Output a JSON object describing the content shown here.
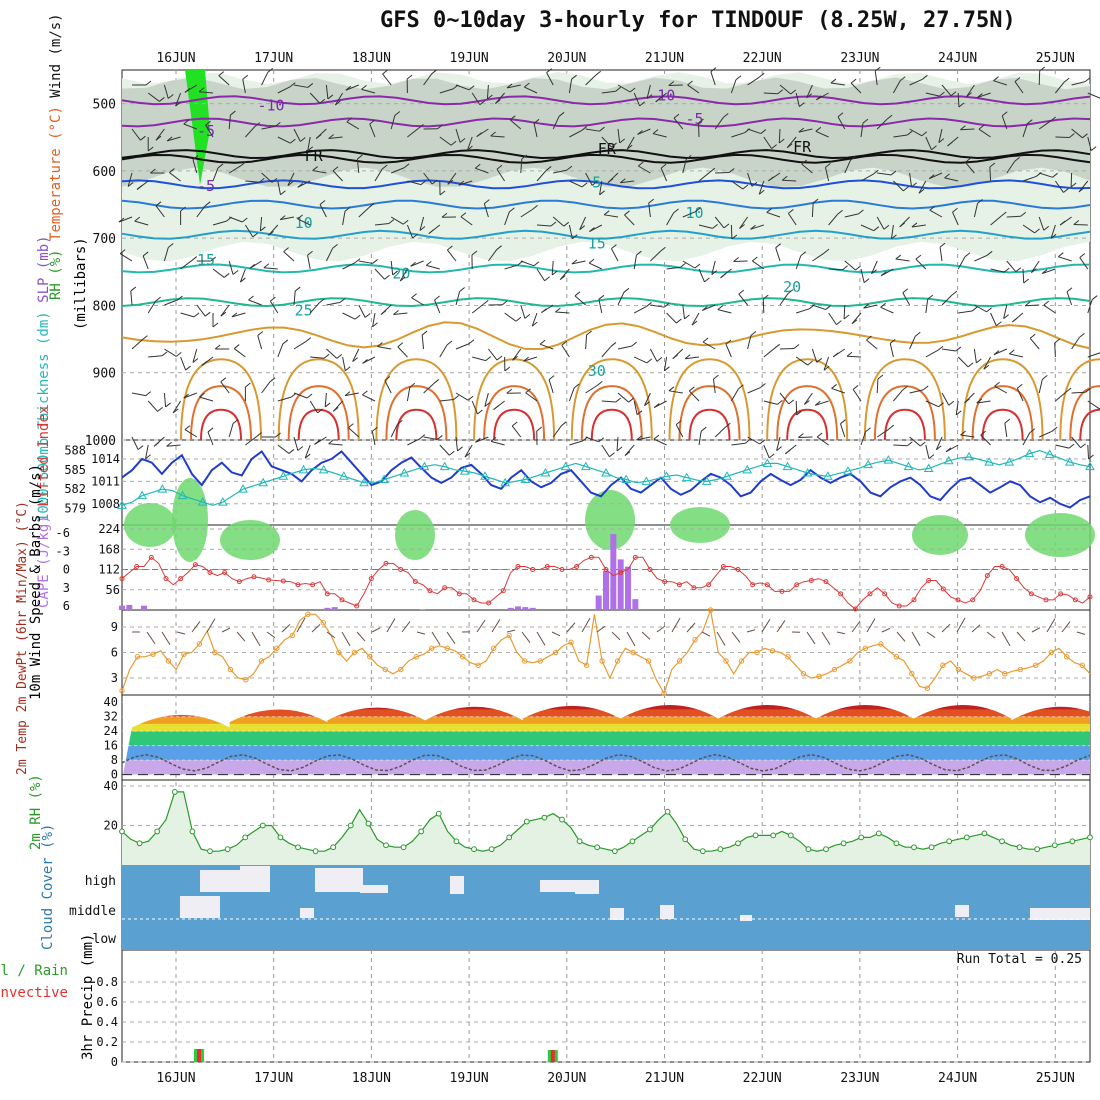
{
  "title": "GFS 0~10day 3-hourly for TINDOUF (8.25W, 27.75N)",
  "run_total": "Run Total = 0.25",
  "colors": {
    "wind_barb": "#333333",
    "slp": "#1f3ccc",
    "thickness": "#22b8b8",
    "lifted": "#d83a3a",
    "cape": "#b070e8",
    "wind10": "#e89a30",
    "temp": "#c2410c",
    "rh2m": "#2a9a2a",
    "cloud_bg": "#5aa0d0",
    "precip_total": "#2ecc40",
    "precip_conv": "#e53030"
  },
  "chart_data": [
    {
      "type": "heatmap",
      "panel": "upper-air",
      "xlabel_dates": [
        "16JUN",
        "17JUN",
        "18JUN",
        "19JUN",
        "20JUN",
        "21JUN",
        "22JUN",
        "23JUN",
        "24JUN",
        "25JUN"
      ],
      "ylabel": "(millibars)",
      "side_labels": [
        "Wind (m/s)",
        "Temperature (°C)",
        "RH (%)"
      ],
      "yticks": [
        500,
        600,
        700,
        800,
        900,
        1000
      ],
      "ylim": [
        450,
        1000
      ],
      "isotherm_labels": [
        {
          "text": "-10",
          "x": "16JUN",
          "p": 510
        },
        {
          "text": "-5",
          "x": "16JUN",
          "p": 548
        },
        {
          "text": "FR",
          "x": "17JUN",
          "p": 585
        },
        {
          "text": "-5",
          "x": "16JUN",
          "p": 630
        },
        {
          "text": "10",
          "x": "17JUN",
          "p": 685
        },
        {
          "text": "15",
          "x": "16JUN",
          "p": 740
        },
        {
          "text": "25",
          "x": "17JUN",
          "p": 815
        },
        {
          "text": "20",
          "x": "18JUN",
          "p": 760
        },
        {
          "text": "FR",
          "x": "20JUN",
          "p": 575
        },
        {
          "text": "5",
          "x": "20JUN",
          "p": 625
        },
        {
          "text": "15",
          "x": "20JUN",
          "p": 715
        },
        {
          "text": "-10",
          "x": "20JUN",
          "p": 495
        },
        {
          "text": "-5",
          "x": "21JUN",
          "p": 530
        },
        {
          "text": "10",
          "x": "21JUN",
          "p": 670
        },
        {
          "text": "20",
          "x": "22JUN",
          "p": 780
        },
        {
          "text": "FR",
          "x": "22JUN",
          "p": 572
        },
        {
          "text": "30",
          "x": "20JUN",
          "p": 905
        }
      ]
    },
    {
      "type": "line",
      "panel": "thickness-slp",
      "y_left_label": "1000-500mb Thickness (dm)",
      "y_right_label": "SLP (mb)",
      "yticks_left": [
        579,
        582,
        585,
        588
      ],
      "yticks_right": [
        1008,
        1011,
        1014
      ],
      "series": [
        {
          "name": "SLP",
          "axis": "right",
          "values": [
            1011.5,
            1012.5,
            1014,
            1013.5,
            1012,
            1013.5,
            1014.5,
            1012,
            1010.5,
            1012.5,
            1013.5,
            1012.2,
            1011.8,
            1014,
            1015,
            1013,
            1012.5,
            1012,
            1011,
            1012.5,
            1013.5,
            1014,
            1015,
            1013.5,
            1012,
            1010.5,
            1011,
            1012.5,
            1013.5,
            1014.2,
            1012.8,
            1011.5,
            1010.8,
            1011.5,
            1012.8,
            1013.2,
            1012,
            1010.5,
            1010,
            1011.5,
            1012.5,
            1011,
            1010.2,
            1010.8,
            1012,
            1012.5,
            1011,
            1009.5,
            1009,
            1010.5,
            1011.5,
            1010,
            1009.5,
            1010.5,
            1011.5,
            1010,
            1009.2,
            1009.8,
            1011,
            1012,
            1011.5,
            1010.5,
            1009,
            1009.5,
            1011,
            1012,
            1011.2,
            1010.5,
            1011.2,
            1012.5,
            1011.5,
            1010.8,
            1011.5,
            1012,
            1011,
            1009.5,
            1009,
            1010.2,
            1011,
            1011.5,
            1010.5,
            1009,
            1008.5,
            1010,
            1011.2,
            1011.5,
            1010.5,
            1009.5,
            1010.2,
            1011,
            1010.5,
            1009,
            1008.2,
            1008.8,
            1008,
            1007.5,
            1008.5,
            1009
          ]
        },
        {
          "name": "Thickness",
          "axis": "left",
          "values": [
            579.5,
            580,
            581,
            581.5,
            582,
            581.8,
            581,
            580.5,
            580,
            579.5,
            580,
            581,
            582,
            582.5,
            583,
            583.5,
            584,
            584.5,
            585,
            585.2,
            585,
            584.5,
            584,
            583.5,
            583,
            583,
            583.5,
            584,
            584.5,
            585,
            585.5,
            585.8,
            585.5,
            585,
            584.8,
            584.5,
            584,
            583.5,
            583,
            583.2,
            583.5,
            584,
            584.5,
            585,
            585.5,
            586,
            585.5,
            585,
            584.5,
            583.8,
            583.5,
            583,
            583.2,
            583.6,
            584,
            584.2,
            583.8,
            583.4,
            583.2,
            583.5,
            584,
            584.5,
            585,
            585.5,
            586,
            586,
            585.5,
            585,
            584.5,
            584.2,
            584,
            584.4,
            584.8,
            585.2,
            585.8,
            586.2,
            586.5,
            586,
            585.5,
            585,
            585.2,
            585.8,
            586.4,
            586.8,
            587,
            586.6,
            586.2,
            585.8,
            586.2,
            586.8,
            587.5,
            588,
            587.4,
            586.8,
            586.2,
            585.8,
            585.5
          ]
        }
      ]
    },
    {
      "type": "bar",
      "panel": "cape-lifted",
      "y_left_label": "Lifted Index",
      "y_right_label": "CAPE (J/kg)",
      "yticks_left": [
        -6,
        -3,
        0,
        3,
        6
      ],
      "yticks_right": [
        56,
        112,
        168,
        224
      ],
      "cape": [
        12,
        14,
        0,
        12,
        0,
        0,
        0,
        0,
        0,
        0,
        0,
        0,
        0,
        0,
        0,
        0,
        0,
        0,
        0,
        0,
        0,
        0,
        0,
        0,
        0,
        0,
        0,
        0,
        6,
        8,
        0,
        0,
        0,
        0,
        0,
        0,
        0,
        0,
        0,
        0,
        0,
        2,
        0,
        0,
        0,
        0,
        0,
        0,
        0,
        0,
        0,
        0,
        0,
        6,
        10,
        8,
        6,
        0,
        0,
        0,
        0,
        0,
        0,
        0,
        0,
        40,
        108,
        210,
        140,
        120,
        30,
        0,
        0,
        0,
        0,
        0,
        0,
        0,
        0,
        0,
        0,
        0,
        0,
        0,
        0,
        0,
        0,
        0,
        0,
        0,
        0,
        0,
        0,
        0,
        0,
        0,
        0,
        0,
        0,
        0,
        0,
        0,
        0,
        0,
        0,
        0,
        0,
        0,
        0,
        0,
        0,
        0,
        0,
        0,
        0,
        0,
        0,
        0,
        0,
        0,
        0,
        0,
        0,
        0,
        0,
        0,
        0,
        2,
        0,
        0,
        0,
        0,
        0
      ],
      "lifted_index": [
        1.5,
        0.5,
        -0.5,
        -0.5,
        -2,
        -1,
        1.5,
        2.5,
        1.5,
        0.5,
        -0.8,
        -0.5,
        0.5,
        1,
        0.5,
        1.5,
        2,
        1.5,
        1.2,
        1.4,
        1.7,
        1.8,
        1.9,
        2,
        2.5,
        2.3,
        2.5,
        2,
        4,
        4,
        5,
        5.5,
        6,
        4,
        1.5,
        0,
        -1,
        -1,
        0,
        0.5,
        2,
        2.5,
        3.5,
        4,
        3,
        3,
        4,
        4,
        5,
        5.5,
        5.5,
        4.5,
        3.5,
        0.5,
        -0.5,
        -0.5,
        0,
        0,
        -0.5,
        -0.5,
        0,
        0,
        -0.5,
        -1.5,
        -2,
        -2,
        0,
        1,
        0.5,
        0,
        -2,
        -2,
        0,
        1.5,
        2,
        2,
        2.5,
        2,
        3,
        3,
        2.5,
        1,
        -0.5,
        -0.5,
        0,
        1,
        2.5,
        2.2,
        2.5,
        3.6,
        3.6,
        3.6,
        2.5,
        2,
        1.8,
        1.5,
        2,
        3,
        4,
        5.5,
        6.5,
        5,
        4,
        3,
        4,
        5.5,
        6,
        6,
        5,
        3,
        1.8,
        1.8,
        3.2,
        4.5,
        5,
        5.5,
        5,
        3.5,
        1,
        -0.5,
        -0.5,
        0,
        1.5,
        3,
        4,
        4.5,
        5,
        5,
        4,
        4.2,
        5,
        5.5,
        4.5
      ]
    },
    {
      "type": "line",
      "panel": "wind10m",
      "ylabel": "10m Wind Speed & Barbs (m/s)",
      "yticks": [
        3,
        6,
        9
      ],
      "ylim": [
        1,
        11
      ],
      "series": [
        {
          "name": "10m Wind",
          "values": [
            1.5,
            4,
            5.5,
            5.5,
            5.8,
            6.2,
            5,
            4,
            5.8,
            6,
            7,
            8.5,
            6,
            5.5,
            4,
            3,
            2.8,
            3.5,
            5,
            5.5,
            6.5,
            7.5,
            8,
            9.8,
            10.5,
            10.5,
            9.5,
            8,
            6,
            5,
            6,
            6.5,
            5.5,
            4.5,
            4,
            3.5,
            4,
            5,
            5.5,
            5.8,
            6.5,
            6.8,
            6.5,
            6.2,
            5.5,
            4.8,
            4.5,
            5,
            6.5,
            7.5,
            8,
            6,
            5,
            4.8,
            5,
            5.5,
            6,
            6.8,
            7.2,
            5,
            4.5,
            10.5,
            5,
            3,
            5,
            6.5,
            6,
            5.5,
            5,
            2.8,
            1.2,
            4,
            5,
            6,
            7.5,
            8.5,
            11,
            6,
            5,
            3.5,
            5,
            6,
            6,
            6.5,
            6.2,
            6,
            5.5,
            4.5,
            3.5,
            3,
            3.2,
            3.5,
            4,
            4.5,
            5,
            6,
            6.5,
            6.8,
            7,
            6.2,
            5.5,
            5,
            3.5,
            2,
            1.8,
            3,
            4.5,
            5,
            4,
            3.5,
            3,
            3.2,
            3.5,
            4,
            3.5,
            3.8,
            4,
            4.2,
            4.5,
            5,
            6,
            6.5,
            5.5,
            4.8,
            4.5,
            3.5
          ]
        }
      ]
    },
    {
      "type": "area",
      "panel": "temp2m",
      "ylabel": "2m Temp 2m DewPt (6hr Min/Max) (°C)",
      "yticks": [
        0,
        8,
        16,
        24,
        32,
        40
      ],
      "ylim": [
        -3,
        44
      ],
      "temp_max_by_day": [
        37,
        40,
        41,
        42,
        42,
        43,
        43,
        43,
        43,
        42
      ],
      "temp_min_by_day": [
        26,
        29,
        30,
        30,
        31,
        31,
        31,
        31,
        31,
        30
      ],
      "dewpoint_range": [
        2,
        11
      ]
    },
    {
      "type": "area",
      "panel": "rh2m",
      "ylabel": "2m RH (%)",
      "yticks": [
        20,
        40
      ],
      "ylim": [
        0,
        40
      ],
      "series": [
        {
          "name": "2m RH",
          "values": [
            17,
            13,
            11,
            12,
            17,
            23,
            37,
            37,
            17,
            8,
            7,
            7,
            8,
            10,
            14,
            17,
            20,
            20,
            14,
            11,
            9,
            8,
            7,
            7,
            9,
            14,
            20,
            28,
            21,
            13,
            10,
            9,
            9,
            12,
            17,
            23,
            26,
            17,
            12,
            9,
            8,
            7,
            8,
            10,
            14,
            18,
            22,
            23,
            24,
            26,
            23,
            19,
            12,
            10,
            9,
            8,
            7,
            9,
            12,
            15,
            18,
            23,
            27,
            21,
            13,
            8,
            7,
            7,
            8,
            9,
            11,
            14,
            15,
            15,
            15,
            17,
            15,
            12,
            8,
            7,
            8,
            10,
            11,
            12,
            14,
            14,
            16,
            14,
            11,
            9,
            9,
            8,
            9,
            11,
            12,
            13,
            14,
            15,
            16,
            14,
            12,
            10,
            9,
            8,
            8,
            9,
            10,
            11,
            12,
            13,
            14
          ]
        }
      ]
    },
    {
      "type": "bar",
      "panel": "cloud-cover",
      "ylabel": "Cloud Cover (%)",
      "levels": [
        "high",
        "middle",
        "low"
      ]
    },
    {
      "type": "bar",
      "panel": "precip",
      "ylabel": "3hr Precip (mm)",
      "side_labels": [
        "Total / Rain",
        "Convective"
      ],
      "yticks": [
        0,
        0.2,
        0.4,
        0.6,
        0.8
      ],
      "ylim": [
        0,
        1
      ],
      "bars": [
        {
          "x": "16JUN",
          "total": 0.13
        },
        {
          "x": "20JUN",
          "total": 0.12
        }
      ]
    }
  ]
}
